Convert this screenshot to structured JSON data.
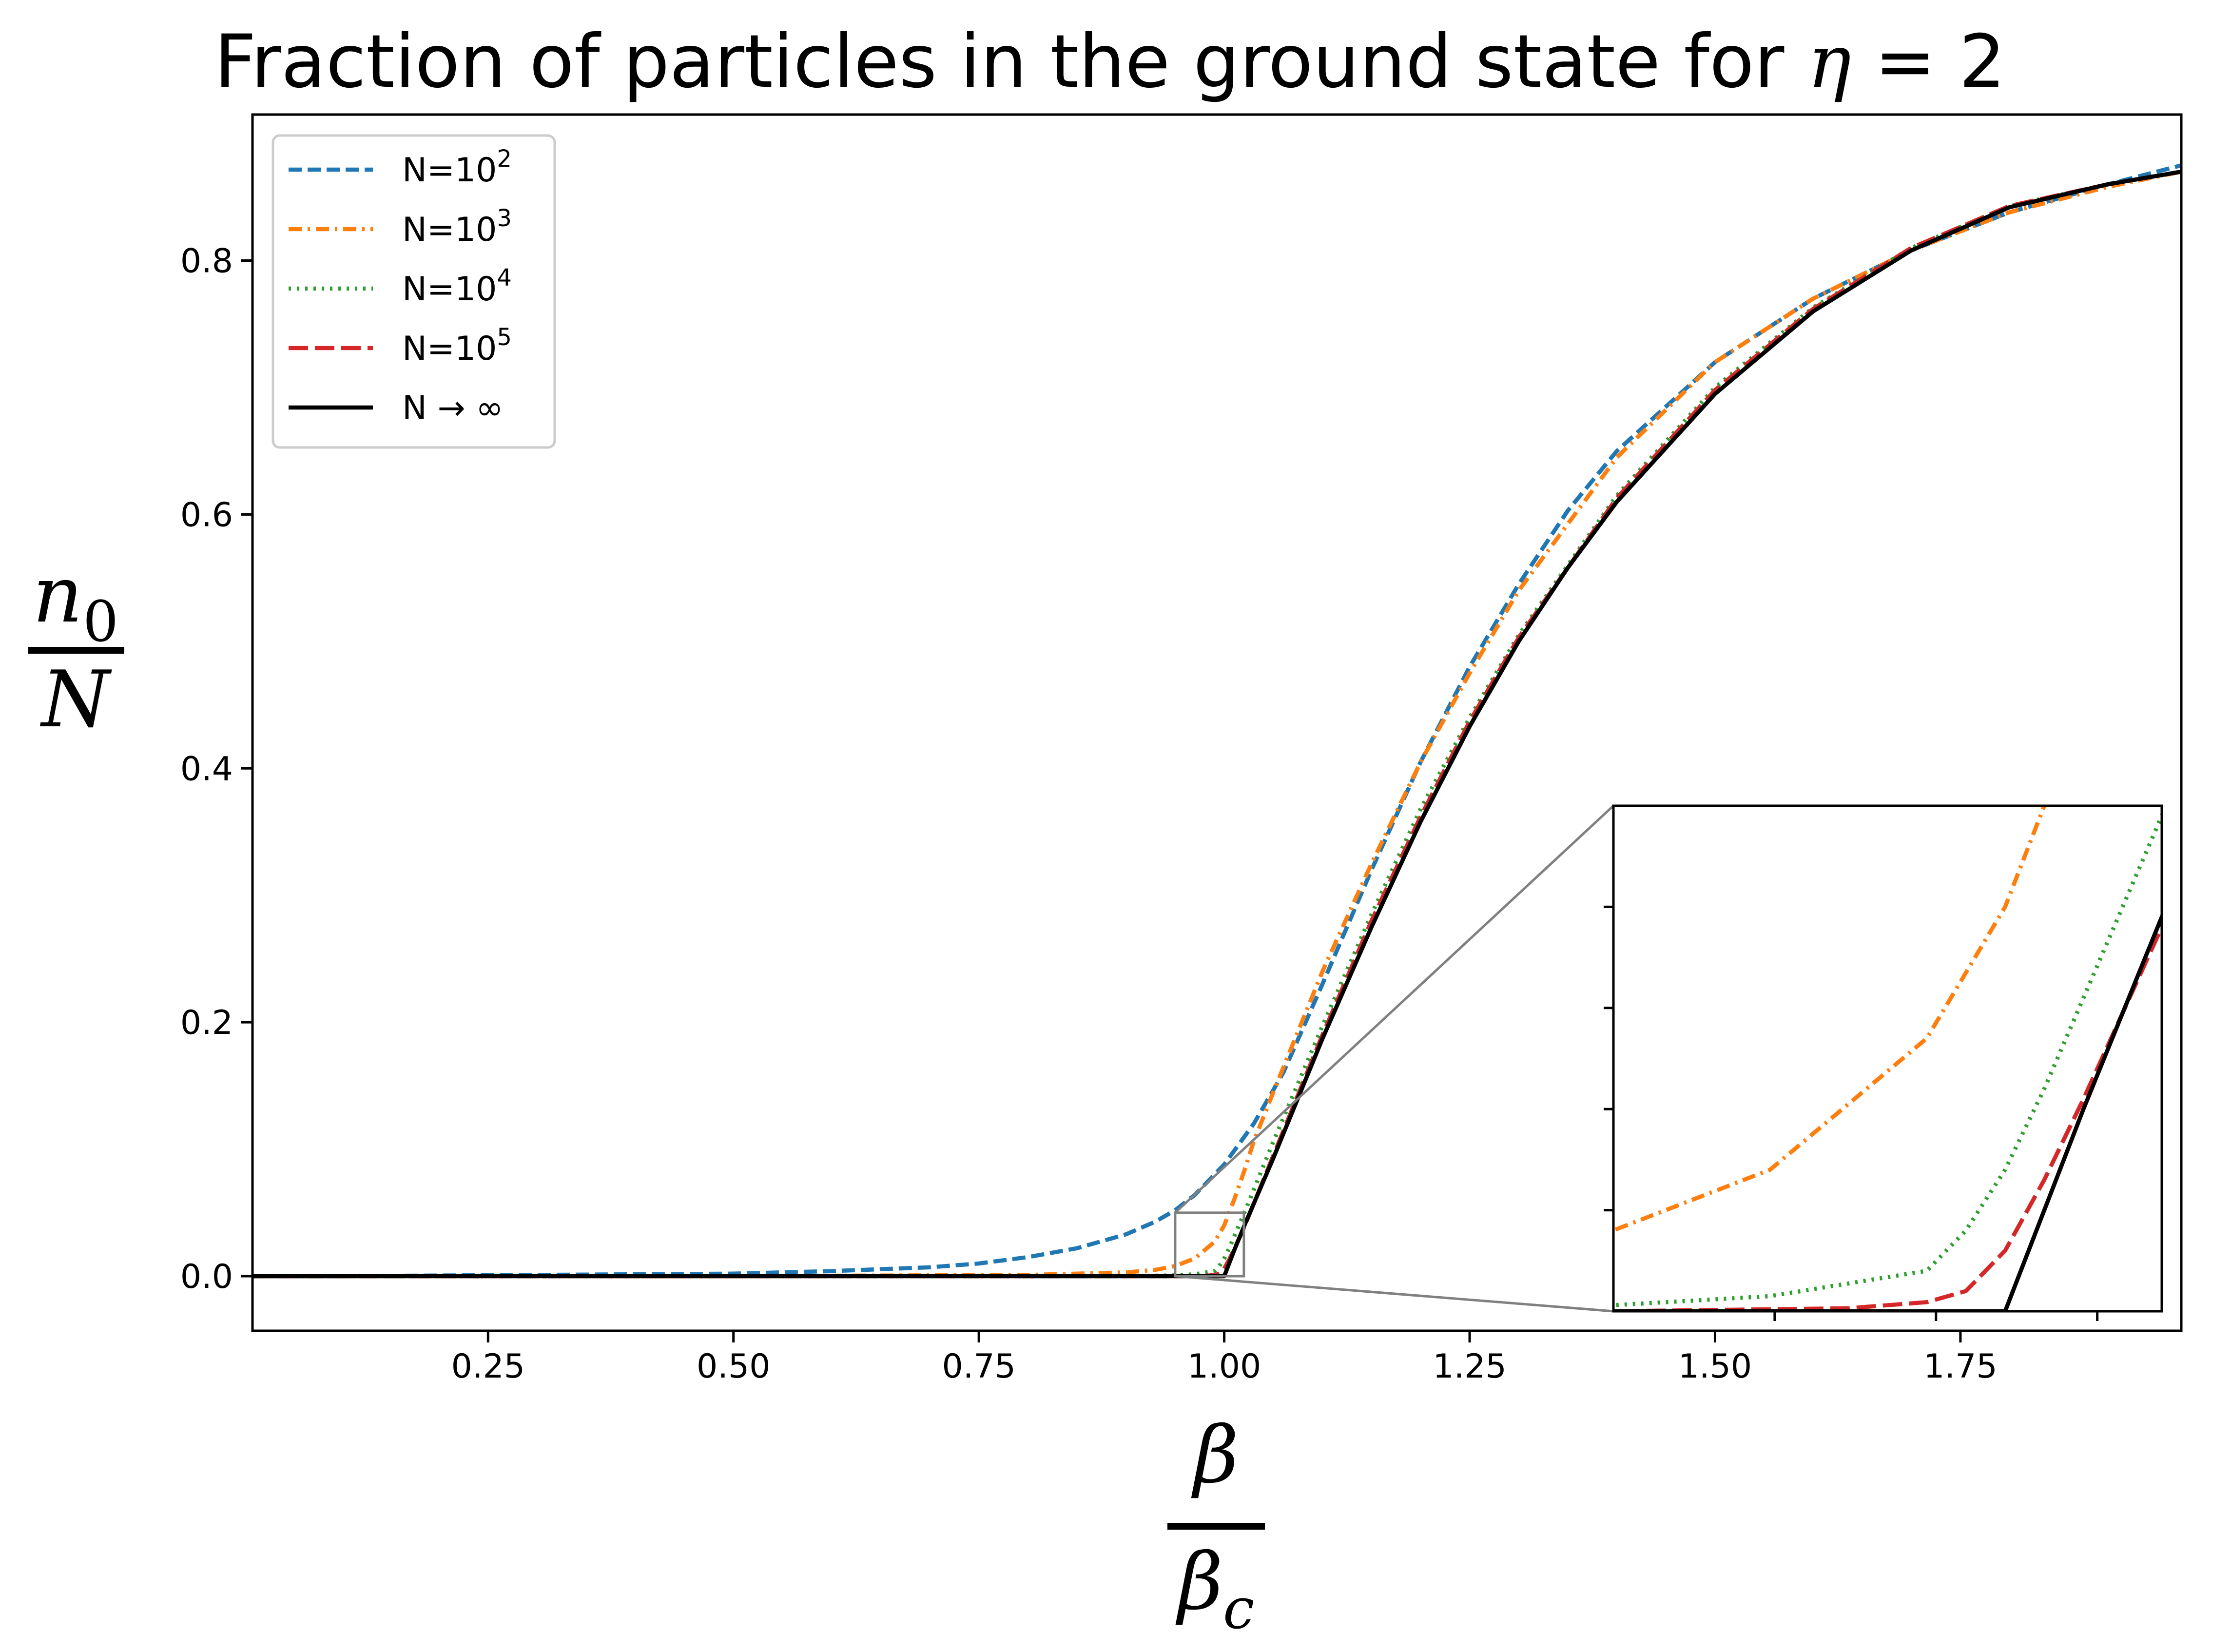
{
  "chart_data": {
    "type": "line",
    "title": "Fraction of particles in the ground state for ",
    "title_math": {
      "symbol": "η",
      "eq": " = ",
      "value": "2"
    },
    "xlabel": {
      "numerator": "β",
      "denominator": "β",
      "denominator_sub": "c"
    },
    "ylabel": {
      "numerator": "n",
      "numerator_sub": "0",
      "denominator": "N"
    },
    "xlim": [
      0.01,
      1.975
    ],
    "ylim": [
      -0.043,
      0.915
    ],
    "xticks": [
      {
        "value": 0.25,
        "label": "0.25"
      },
      {
        "value": 0.5,
        "label": "0.50"
      },
      {
        "value": 0.75,
        "label": "0.75"
      },
      {
        "value": 1.0,
        "label": "1.00"
      },
      {
        "value": 1.25,
        "label": "1.25"
      },
      {
        "value": 1.5,
        "label": "1.50"
      },
      {
        "value": 1.75,
        "label": "1.75"
      }
    ],
    "yticks": [
      {
        "value": 0.0,
        "label": "0.0"
      },
      {
        "value": 0.2,
        "label": "0.2"
      },
      {
        "value": 0.4,
        "label": "0.4"
      },
      {
        "value": 0.6,
        "label": "0.6"
      },
      {
        "value": 0.8,
        "label": "0.8"
      }
    ],
    "grid": false,
    "legend_position": "top-left",
    "series": [
      {
        "name": "N=10",
        "name_sup": "2",
        "color": "#1f77b4",
        "dash": "dashed",
        "x": [
          0.01,
          0.1,
          0.2,
          0.3,
          0.4,
          0.5,
          0.6,
          0.7,
          0.75,
          0.8,
          0.85,
          0.9,
          0.93,
          0.95,
          0.97,
          1.0,
          1.03,
          1.06,
          1.1,
          1.15,
          1.2,
          1.25,
          1.3,
          1.35,
          1.4,
          1.5,
          1.6,
          1.7,
          1.8,
          1.9,
          1.975
        ],
        "y": [
          0.0,
          0.0,
          0.0005,
          0.001,
          0.0015,
          0.002,
          0.004,
          0.007,
          0.01,
          0.015,
          0.022,
          0.033,
          0.043,
          0.052,
          0.064,
          0.088,
          0.12,
          0.16,
          0.23,
          0.32,
          0.405,
          0.48,
          0.545,
          0.603,
          0.65,
          0.72,
          0.77,
          0.808,
          0.838,
          0.86,
          0.875
        ]
      },
      {
        "name": "N=10",
        "name_sup": "3",
        "color": "#ff7f0e",
        "dash": "dashdot",
        "x": [
          0.01,
          0.5,
          0.8,
          0.9,
          0.93,
          0.95,
          0.97,
          0.99,
          1.0,
          1.01,
          1.02,
          1.03,
          1.05,
          1.1,
          1.15,
          1.2,
          1.25,
          1.3,
          1.4,
          1.5,
          1.6,
          1.7,
          1.8,
          1.9,
          1.975
        ],
        "y": [
          0.0,
          0.0,
          0.001,
          0.003,
          0.005,
          0.008,
          0.014,
          0.027,
          0.04,
          0.06,
          0.082,
          0.106,
          0.145,
          0.24,
          0.325,
          0.405,
          0.475,
          0.54,
          0.645,
          0.72,
          0.77,
          0.808,
          0.838,
          0.858,
          0.87
        ]
      },
      {
        "name": "N=10",
        "name_sup": "4",
        "color": "#2ca02c",
        "dash": "dotted",
        "x": [
          0.01,
          0.9,
          0.95,
          0.97,
          0.99,
          0.995,
          1.0,
          1.005,
          1.01,
          1.015,
          1.02,
          1.03,
          1.05,
          1.1,
          1.15,
          1.2,
          1.25,
          1.3,
          1.4,
          1.5,
          1.6,
          1.7,
          1.8,
          1.9,
          1.975
        ],
        "y": [
          0.0,
          0.0,
          0.0006,
          0.0015,
          0.004,
          0.008,
          0.014,
          0.022,
          0.031,
          0.04,
          0.049,
          0.068,
          0.106,
          0.197,
          0.285,
          0.368,
          0.44,
          0.505,
          0.615,
          0.7,
          0.763,
          0.81,
          0.843,
          0.86,
          0.87
        ]
      },
      {
        "name": "N=10",
        "name_sup": "5",
        "color": "#d62728",
        "dash": "longdash",
        "x": [
          0.01,
          0.95,
          0.98,
          0.99,
          0.995,
          1.0,
          1.005,
          1.01,
          1.02,
          1.03,
          1.05,
          1.1,
          1.15,
          1.2,
          1.25,
          1.3,
          1.4,
          1.5,
          1.6,
          1.7,
          1.8,
          1.9,
          1.975
        ],
        "y": [
          0.0,
          0.0,
          0.0003,
          0.0009,
          0.002,
          0.006,
          0.013,
          0.021,
          0.038,
          0.057,
          0.095,
          0.19,
          0.28,
          0.362,
          0.437,
          0.503,
          0.613,
          0.698,
          0.762,
          0.81,
          0.843,
          0.86,
          0.87
        ]
      },
      {
        "name": "N",
        "name_suffix": " → ∞",
        "color": "#000000",
        "dash": "solid",
        "x": [
          0.01,
          1.0,
          1.01,
          1.02,
          1.03,
          1.05,
          1.1,
          1.15,
          1.2,
          1.25,
          1.3,
          1.35,
          1.4,
          1.5,
          1.6,
          1.7,
          1.8,
          1.9,
          1.975
        ],
        "y": [
          0.0,
          0.0,
          0.02,
          0.039,
          0.057,
          0.093,
          0.187,
          0.275,
          0.358,
          0.433,
          0.5,
          0.558,
          0.61,
          0.695,
          0.76,
          0.808,
          0.842,
          0.86,
          0.87
        ]
      }
    ],
    "inset": {
      "zoom_xlim": [
        0.95,
        1.02
      ],
      "zoom_ylim": [
        0.0,
        0.05
      ]
    }
  }
}
